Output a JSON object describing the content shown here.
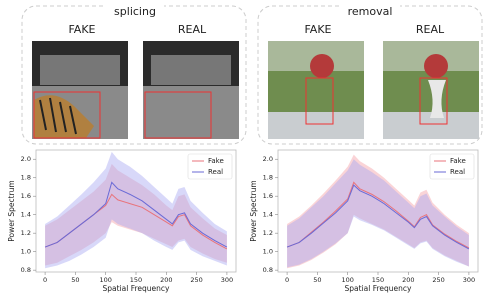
{
  "figure": {
    "panels": [
      {
        "title": "splicing",
        "fake_label": "FAKE",
        "real_label": "REAL"
      },
      {
        "title": "removal",
        "fake_label": "FAKE",
        "real_label": "REAL"
      }
    ]
  },
  "chart_data": [
    {
      "type": "line",
      "xlabel": "Spatial Frequency",
      "ylabel": "Power Spectrum",
      "x": [
        0,
        20,
        40,
        60,
        80,
        100,
        110,
        120,
        140,
        160,
        180,
        200,
        210,
        220,
        230,
        240,
        260,
        280,
        300
      ],
      "xlim": [
        -15,
        315
      ],
      "xticks": [
        0,
        50,
        100,
        150,
        200,
        250,
        300
      ],
      "ylim": [
        0.78,
        2.1
      ],
      "yticks": [
        0.8,
        {
          "value": 1,
          "label": "1.0"
        },
        1.2,
        1.4,
        1.6,
        1.8,
        {
          "value": 2,
          "label": "2.0"
        }
      ],
      "legend": "upper right",
      "series": [
        {
          "name": "Fake",
          "color": "#e8737b",
          "band_color": "#f5a0a6",
          "values": [
            1.05,
            1.1,
            1.2,
            1.3,
            1.4,
            1.5,
            1.62,
            1.56,
            1.52,
            1.48,
            1.4,
            1.32,
            1.28,
            1.38,
            1.4,
            1.28,
            1.18,
            1.1,
            1.03
          ],
          "upper": [
            1.28,
            1.35,
            1.45,
            1.55,
            1.65,
            1.78,
            1.95,
            1.88,
            1.8,
            1.72,
            1.62,
            1.5,
            1.45,
            1.6,
            1.62,
            1.48,
            1.36,
            1.25,
            1.18
          ],
          "lower": [
            0.85,
            0.88,
            0.95,
            1.02,
            1.1,
            1.2,
            1.32,
            1.28,
            1.24,
            1.2,
            1.14,
            1.08,
            1.05,
            1.12,
            1.14,
            1.05,
            0.98,
            0.92,
            0.88
          ]
        },
        {
          "name": "Real",
          "color": "#6a6ad6",
          "band_color": "#a8a8f2",
          "values": [
            1.05,
            1.1,
            1.2,
            1.3,
            1.4,
            1.52,
            1.75,
            1.68,
            1.62,
            1.55,
            1.45,
            1.35,
            1.3,
            1.4,
            1.42,
            1.3,
            1.2,
            1.12,
            1.05
          ],
          "upper": [
            1.3,
            1.38,
            1.5,
            1.62,
            1.75,
            1.9,
            2.08,
            2.0,
            1.92,
            1.82,
            1.7,
            1.58,
            1.52,
            1.68,
            1.7,
            1.55,
            1.42,
            1.3,
            1.22
          ],
          "lower": [
            0.82,
            0.85,
            0.9,
            0.97,
            1.05,
            1.15,
            1.35,
            1.3,
            1.25,
            1.2,
            1.12,
            1.05,
            1.02,
            1.1,
            1.12,
            1.02,
            0.95,
            0.9,
            0.85
          ]
        }
      ]
    },
    {
      "type": "line",
      "xlabel": "Spatial Frequency",
      "ylabel": "Power Spectrum",
      "x": [
        0,
        20,
        40,
        60,
        80,
        100,
        110,
        120,
        140,
        160,
        180,
        200,
        210,
        220,
        230,
        240,
        260,
        280,
        300
      ],
      "xlim": [
        -15,
        315
      ],
      "xticks": [
        0,
        50,
        100,
        150,
        200,
        250,
        300
      ],
      "ylim": [
        0.78,
        2.1
      ],
      "yticks": [
        0.8,
        {
          "value": 1,
          "label": "1.0"
        },
        1.2,
        1.4,
        1.6,
        1.8,
        {
          "value": 2,
          "label": "2.0"
        }
      ],
      "legend": "upper right",
      "series": [
        {
          "name": "Fake",
          "color": "#e8737b",
          "band_color": "#f5a0a6",
          "values": [
            1.05,
            1.1,
            1.21,
            1.32,
            1.44,
            1.57,
            1.75,
            1.68,
            1.62,
            1.54,
            1.44,
            1.33,
            1.27,
            1.37,
            1.4,
            1.29,
            1.19,
            1.11,
            1.04
          ],
          "upper": [
            1.3,
            1.38,
            1.5,
            1.63,
            1.77,
            1.92,
            2.05,
            1.98,
            1.9,
            1.8,
            1.68,
            1.56,
            1.5,
            1.64,
            1.67,
            1.53,
            1.4,
            1.29,
            1.2
          ],
          "lower": [
            0.82,
            0.85,
            0.91,
            0.99,
            1.08,
            1.2,
            1.4,
            1.36,
            1.3,
            1.24,
            1.16,
            1.08,
            1.04,
            1.1,
            1.12,
            1.04,
            0.96,
            0.9,
            0.84
          ]
        },
        {
          "name": "Real",
          "color": "#6a6ad6",
          "band_color": "#a8a8f2",
          "values": [
            1.05,
            1.1,
            1.2,
            1.31,
            1.42,
            1.55,
            1.72,
            1.66,
            1.6,
            1.52,
            1.42,
            1.32,
            1.26,
            1.35,
            1.38,
            1.28,
            1.18,
            1.1,
            1.03
          ],
          "upper": [
            1.28,
            1.36,
            1.48,
            1.6,
            1.74,
            1.88,
            2.0,
            1.94,
            1.86,
            1.77,
            1.65,
            1.53,
            1.47,
            1.6,
            1.63,
            1.5,
            1.38,
            1.27,
            1.18
          ],
          "lower": [
            0.83,
            0.86,
            0.92,
            1.0,
            1.09,
            1.2,
            1.38,
            1.34,
            1.29,
            1.23,
            1.15,
            1.07,
            1.03,
            1.09,
            1.11,
            1.03,
            0.95,
            0.89,
            0.84
          ]
        }
      ]
    }
  ]
}
